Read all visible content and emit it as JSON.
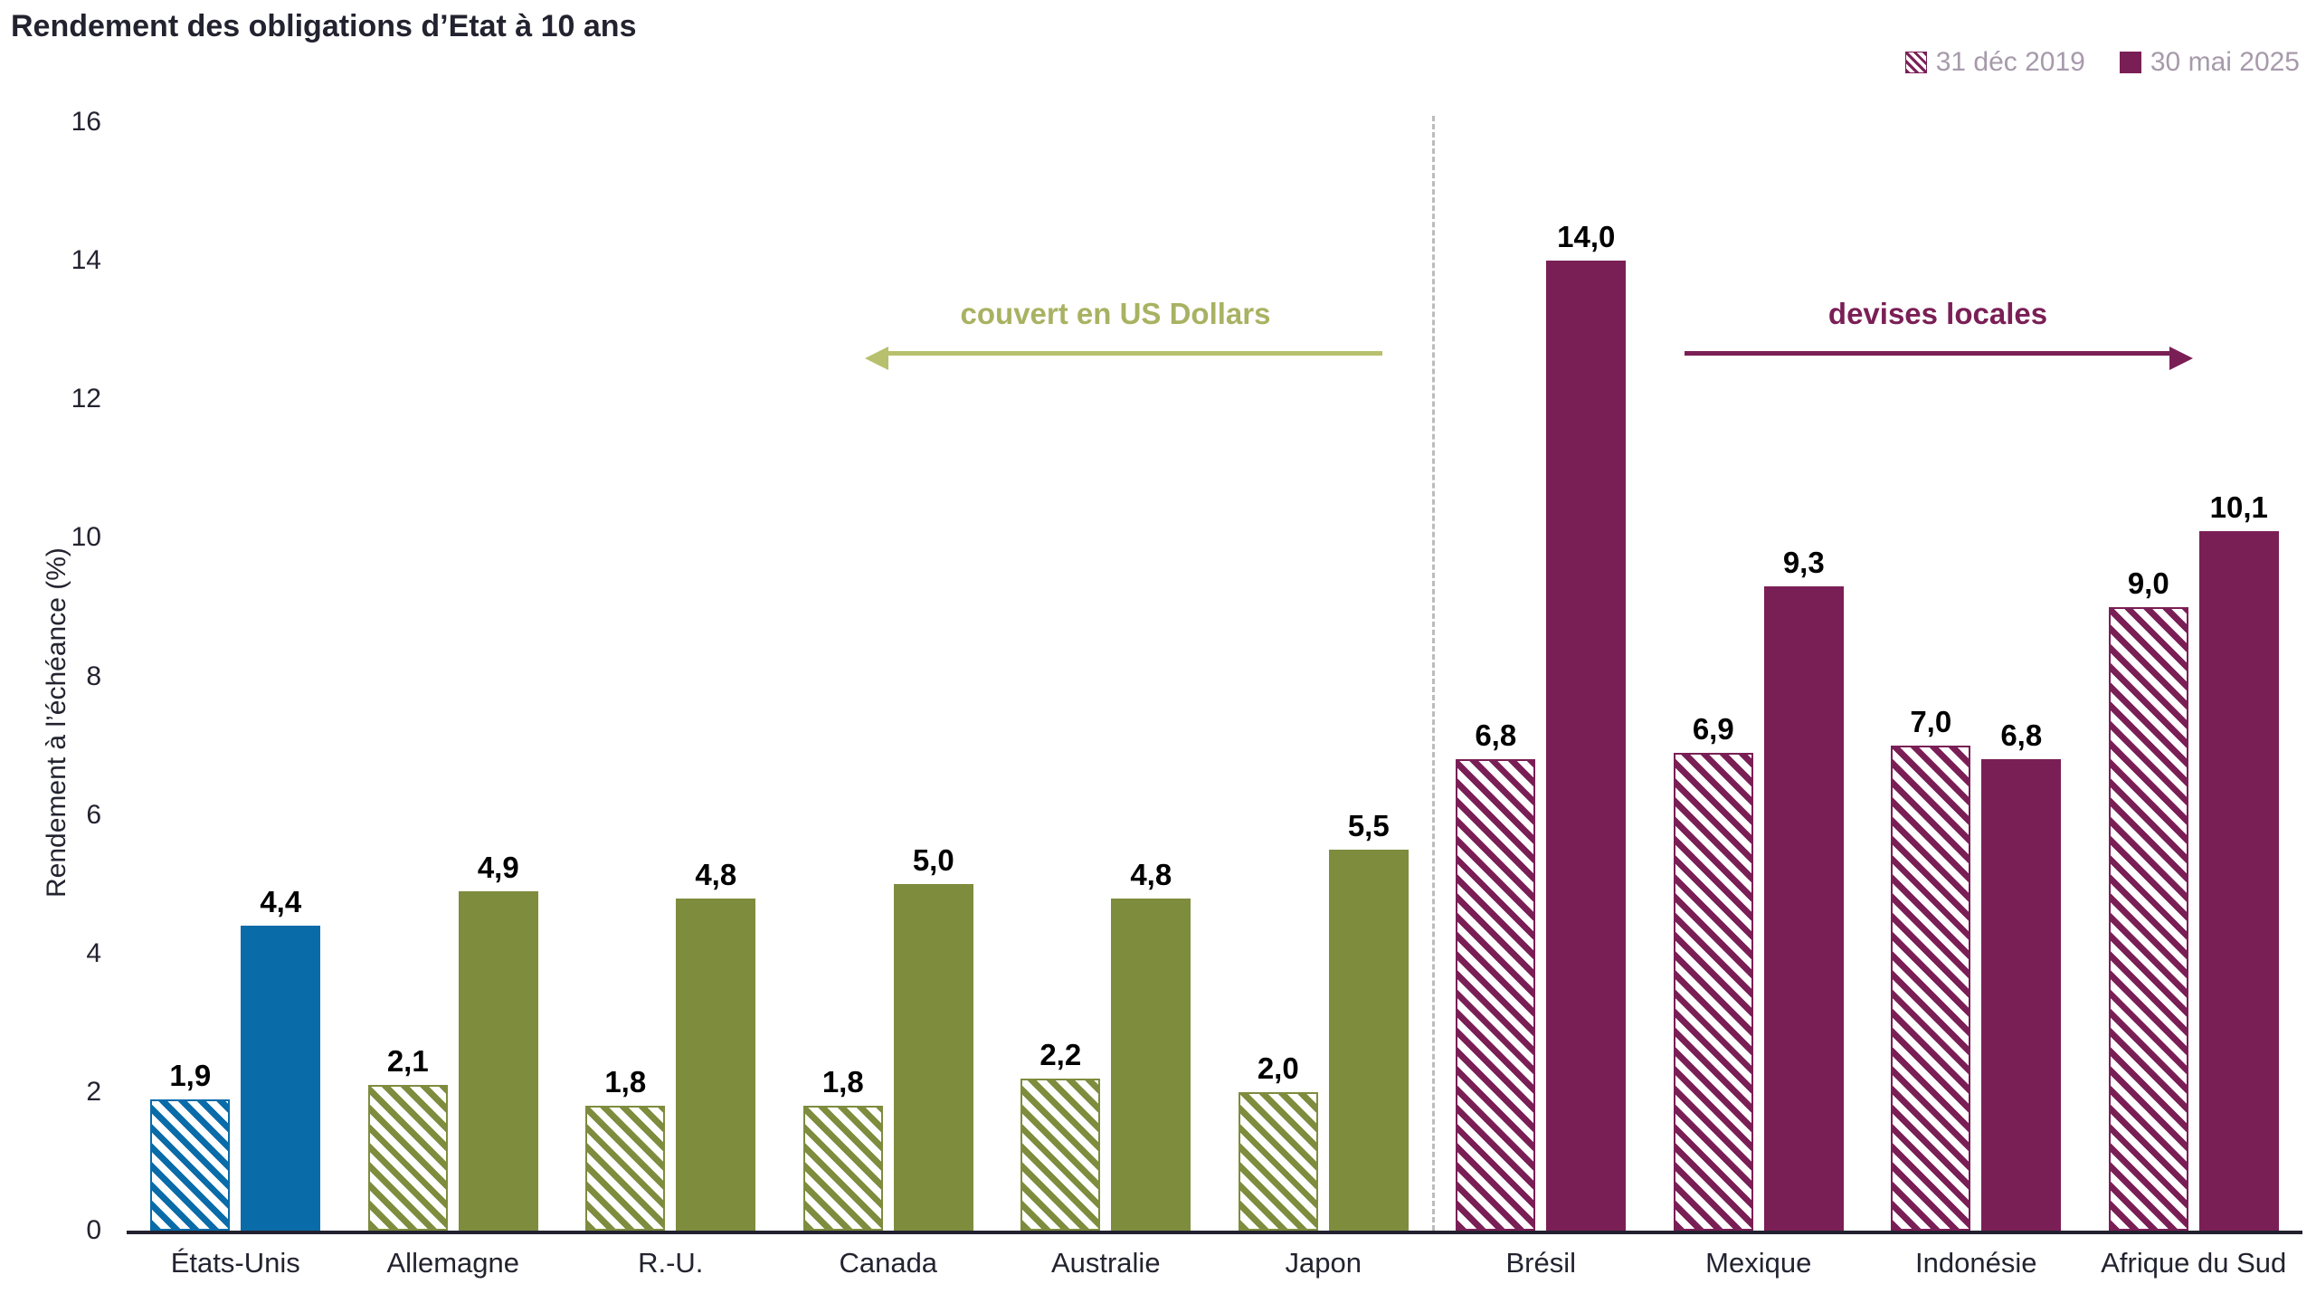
{
  "chart_data": {
    "type": "bar",
    "title": "Rendement des obligations d’Etat à 10 ans",
    "ylabel": "Rendement à l’échéance (%)",
    "ylim": [
      0,
      16
    ],
    "yticks": [
      0,
      2,
      4,
      6,
      8,
      10,
      12,
      14,
      16
    ],
    "grid": false,
    "legend_position": "top-right",
    "categories": [
      "États-Unis",
      "Allemagne",
      "R.-U.",
      "Canada",
      "Australie",
      "Japon",
      "Brésil",
      "Mexique",
      "Indonésie",
      "Afrique du Sud"
    ],
    "series": [
      {
        "name": "31 déc 2019",
        "style": "hatched",
        "values": [
          1.9,
          2.1,
          1.8,
          1.8,
          2.2,
          2.0,
          6.8,
          6.9,
          7.0,
          9.0
        ],
        "labels": [
          "1,9",
          "2,1",
          "1,8",
          "1,8",
          "2,2",
          "2,0",
          "6,8",
          "6,9",
          "7,0",
          "9,0"
        ]
      },
      {
        "name": "30 mai 2025",
        "style": "solid",
        "values": [
          4.4,
          4.9,
          4.8,
          5.0,
          4.8,
          5.5,
          14.0,
          9.3,
          6.8,
          10.1
        ],
        "labels": [
          "4,4",
          "4,9",
          "4,8",
          "5,0",
          "4,8",
          "5,5",
          "14,0",
          "9,3",
          "6,8",
          "10,1"
        ]
      }
    ],
    "group_colors": [
      "#0a6ba9",
      "#7e8c3e",
      "#7e8c3e",
      "#7e8c3e",
      "#7e8c3e",
      "#7e8c3e",
      "#7a1f56",
      "#7a1f56",
      "#7a1f56",
      "#7a1f56"
    ],
    "separator_after_category": "Japon"
  },
  "annotations": {
    "left": {
      "text": "couvert en US Dollars",
      "direction": "left",
      "color": "#a9b262"
    },
    "right": {
      "text": "devises locales",
      "direction": "right",
      "color": "#7a1f56"
    }
  },
  "colors": {
    "us_blue": "#0a6ba9",
    "developed_olive": "#7e8c3e",
    "emerging_purple": "#7a1f56",
    "legend_text": "#a79aab",
    "separator_gray": "#bcbcbc",
    "axis_dark": "#222230",
    "background": "#ffffff"
  }
}
